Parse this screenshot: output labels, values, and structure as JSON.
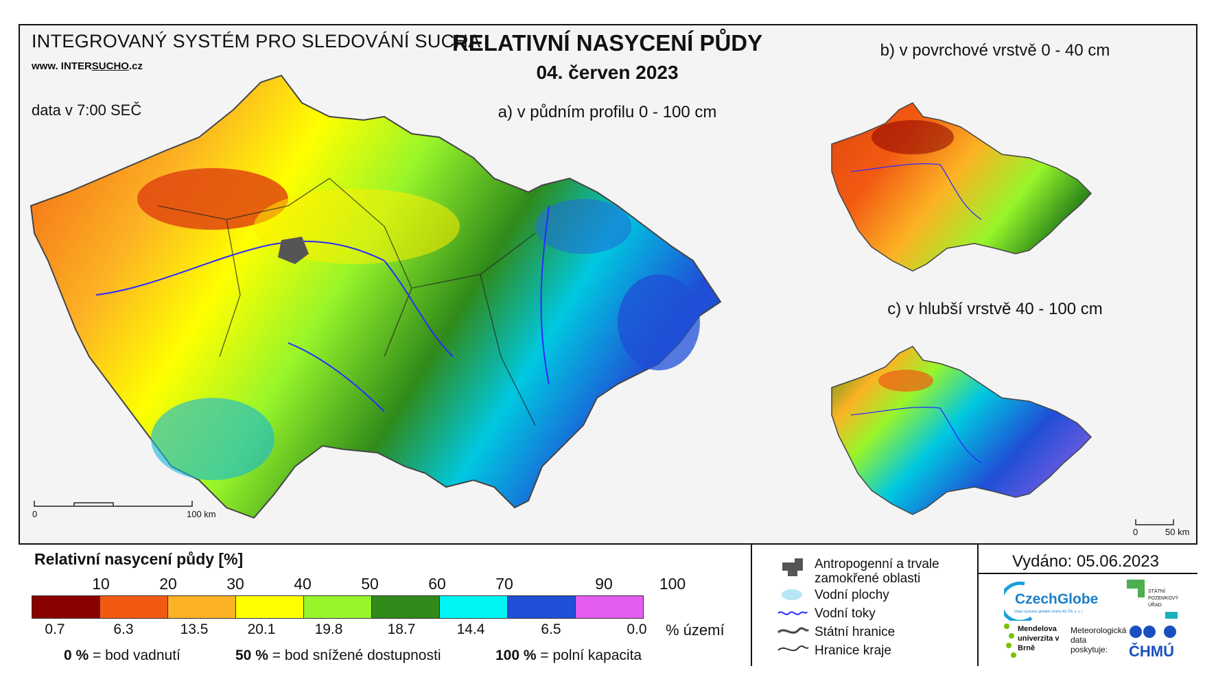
{
  "header": {
    "system_title": "INTEGROVANÝ SYSTÉM PRO SLEDOVÁNÍ SUCHA",
    "url_prefix": "www. INTER",
    "url_highlight": "SUCHO",
    "url_suffix": ".cz",
    "data_time": "data v 7:00 SEČ",
    "title": "RELATIVNÍ NASYCENÍ PŮDY",
    "date": "04. červen 2023"
  },
  "maps": {
    "a": {
      "label": "a) v půdním profilu 0 - 100 cm",
      "scale_start": "0",
      "scale_end": "100 km"
    },
    "b": {
      "label": "b) v povrchové vrstvě 0 - 40 cm"
    },
    "c": {
      "label": "c) v hlubší vrstvě 40 - 100 cm",
      "scale_start": "0",
      "scale_end": "50 km"
    }
  },
  "legend": {
    "title": "Relativní nasycení půdy [%]",
    "thresholds": [
      "10",
      "20",
      "30",
      "40",
      "50",
      "60",
      "70",
      "90",
      "100"
    ],
    "classes": [
      {
        "color": "#8b0000",
        "area_pct": "0.7"
      },
      {
        "color": "#f25a12",
        "area_pct": "6.3"
      },
      {
        "color": "#fcb224",
        "area_pct": "13.5"
      },
      {
        "color": "#ffff00",
        "area_pct": "20.1"
      },
      {
        "color": "#98f52a",
        "area_pct": "19.8"
      },
      {
        "color": "#2f8a1a",
        "area_pct": "18.7"
      },
      {
        "color": "#00f5f5",
        "area_pct": "14.4"
      },
      {
        "color": "#1f4fd6",
        "area_pct": "6.5"
      },
      {
        "color": "#e55cf0",
        "area_pct": "0.0"
      }
    ],
    "area_unit": "% území",
    "notes": [
      {
        "value": "0 %",
        "text": "= bod vadnutí"
      },
      {
        "value": "50 %",
        "text": "= bod snížené dostupnosti"
      },
      {
        "value": "100 %",
        "text": "= polní kapacita"
      }
    ]
  },
  "symbols": [
    {
      "icon": "waterlogged-area-icon",
      "label": "Antropogenní a trvale zamokřené oblasti"
    },
    {
      "icon": "water-surface-icon",
      "label": "Vodní plochy"
    },
    {
      "icon": "river-icon",
      "label": "Vodní toky"
    },
    {
      "icon": "state-border-icon",
      "label": "Státní hranice"
    },
    {
      "icon": "region-border-icon",
      "label": "Hranice kraje"
    }
  ],
  "issued": "Vydáno: 05.06.2023",
  "logos": {
    "czechglobe": "CzechGlobe",
    "czechglobe_sub": "Ústav výzkumu globální změny AV ČR, v. v. i.",
    "spu": "STÁTNÍ POZEMKOVÝ ÚŘAD",
    "mendelu": "Mendelova univerzita v Brně",
    "meteo_note": "Meteorologická data poskytuje:",
    "chmu": "ČHMÚ"
  }
}
